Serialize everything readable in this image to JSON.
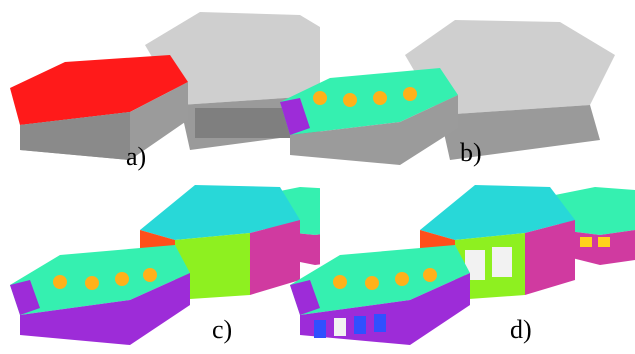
{
  "figure": {
    "labels": {
      "a": "a)",
      "b": "b)",
      "c": "c)",
      "d": "d)"
    }
  },
  "colors": {
    "gray": "#c8c8c8",
    "gray_dark": "#8e8e8e",
    "red": "#ff1a1a",
    "cyan_green": "#35f0b0",
    "cyan": "#28d8d8",
    "purple": "#9d2cd8",
    "lime": "#8ef020",
    "magenta": "#d03aa0",
    "orange": "#ffb11a",
    "white": "#f2f2f2",
    "blue": "#3050ff",
    "yellow": "#ffd31a"
  }
}
